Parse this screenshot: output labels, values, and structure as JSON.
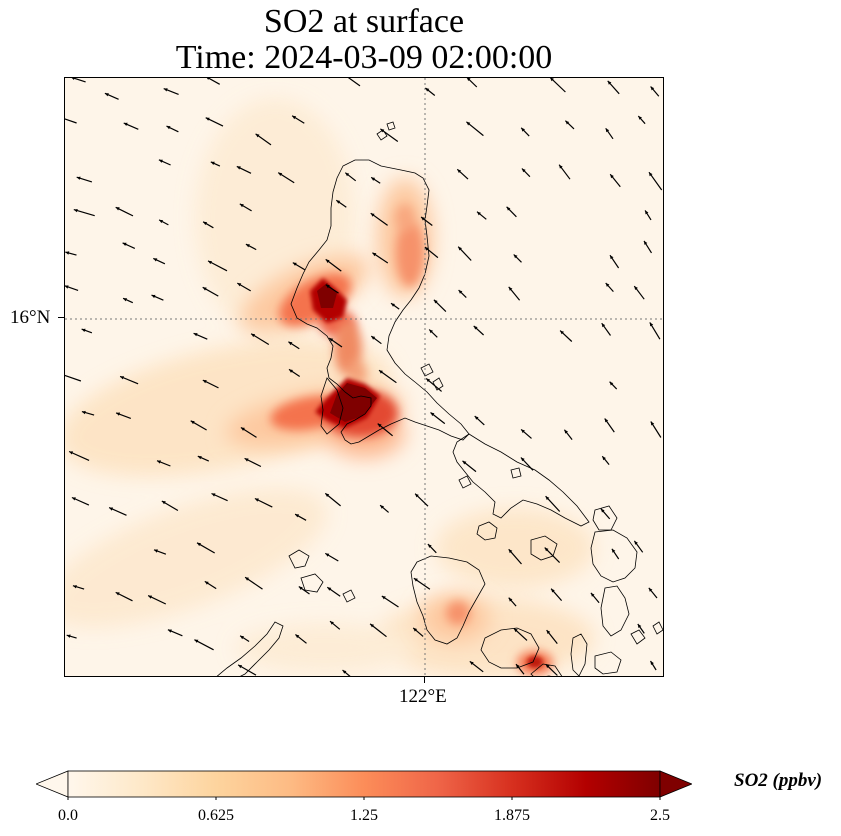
{
  "title_line1": "SO2 at surface",
  "title_line2": "Time: 2024-03-09 02:00:00",
  "map": {
    "lat_tick_label": "16°N",
    "lon_tick_label": "122°E",
    "background_color": "#fef5e9",
    "coastline_color": "#000000",
    "gridline_style": "dotted"
  },
  "colorbar": {
    "label": "SO2 (ppbv)",
    "ticks": [
      "0.0",
      "0.625",
      "1.25",
      "1.875",
      "2.5"
    ],
    "min": 0.0,
    "max": 2.5,
    "extend": "both",
    "colormap": "OrRd",
    "colors": [
      "#fff7ec",
      "#fee8c8",
      "#fdd49e",
      "#fdbb84",
      "#fc8d59",
      "#ef6548",
      "#d7301f",
      "#b30000",
      "#7f0000"
    ]
  },
  "plumes": [
    {
      "id": "plume-north-luzon-west",
      "peak_ppbv": 2.5
    },
    {
      "id": "plume-central-luzon",
      "peak_ppbv": 2.5
    },
    {
      "id": "plume-north-luzon-east",
      "peak_ppbv": 1.4
    },
    {
      "id": "plume-mindoro",
      "peak_ppbv": 1.0
    },
    {
      "id": "plume-panay",
      "peak_ppbv": 1.9
    }
  ],
  "wind_direction": "northeasterly"
}
